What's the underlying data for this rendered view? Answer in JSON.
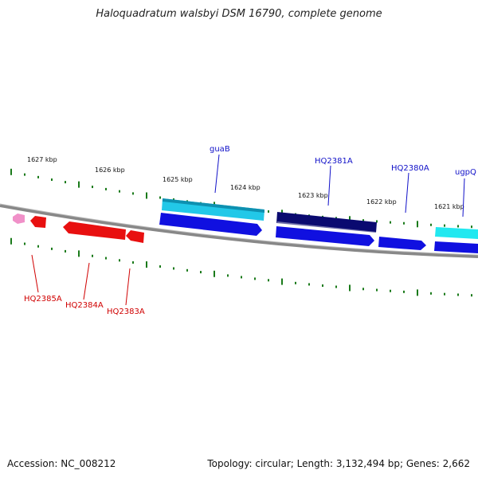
{
  "title": "Haloquadratum walsbyi DSM 16790, complete genome",
  "accession": "Accession: NC_008212",
  "topology": "Topology: circular; Length: 3,132,494 bp; Genes: 2,662",
  "kbp_labels": [
    "1627 kbp",
    "1626 kbp",
    "1625 kbp",
    "1624 kbp",
    "1623 kbp",
    "1622 kbp",
    "1621 kbp"
  ],
  "gene_labels": {
    "guaB": "guaB",
    "HQ2381A": "HQ2381A",
    "HQ2380A": "HQ2380A",
    "ugpQ": "ugpQ",
    "HQ2385A": "HQ2385A",
    "HQ2384A": "HQ2384A",
    "HQ2383A": "HQ2383A"
  },
  "colors": {
    "forward_label": "#1010c8",
    "reverse_label": "#d00000",
    "tick": "#1a7a1a",
    "backbone": "#777777",
    "cyan_gene": "#22c8e8",
    "blue_gene": "#1010e0",
    "navy_gene": "#0a0a70",
    "red_gene": "#e81010",
    "pink_gene": "#f090c8"
  }
}
